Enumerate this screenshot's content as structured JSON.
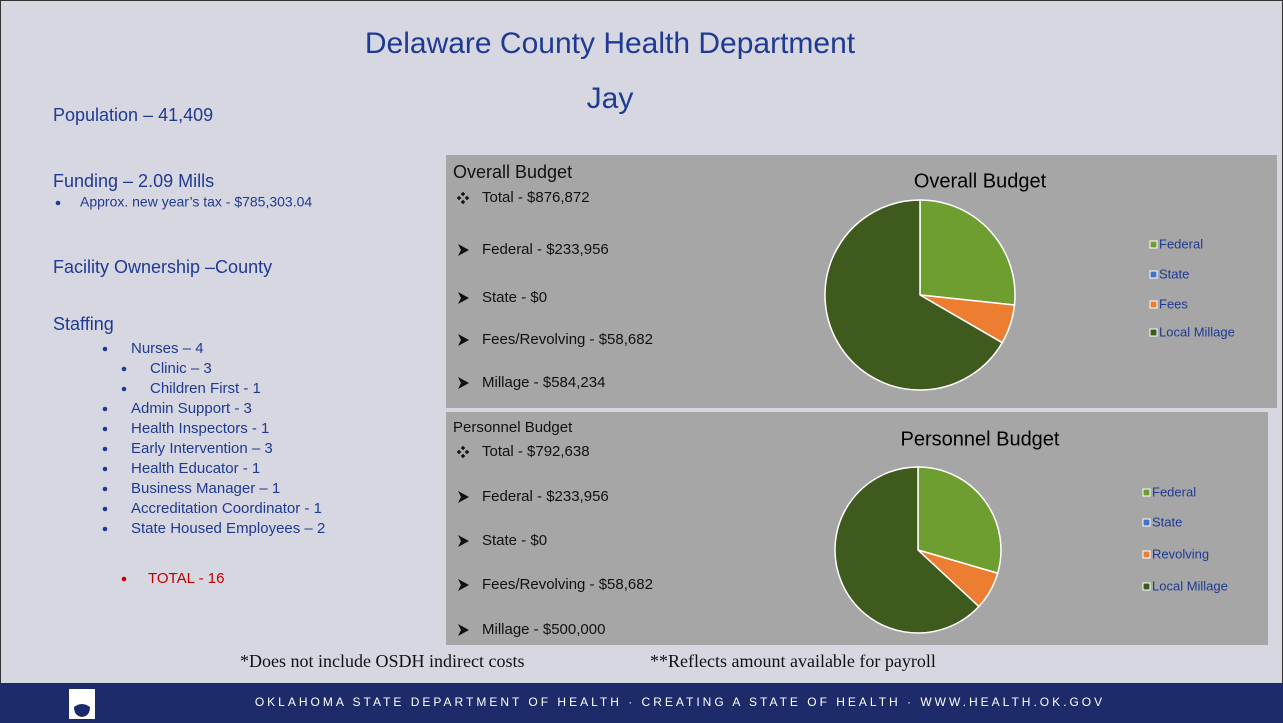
{
  "header": {
    "title": "Delaware County Health Department",
    "subtitle": "Jay"
  },
  "facts": {
    "population": "Population – 41,409",
    "funding": "Funding – 2.09 Mills",
    "funding_note": "Approx. new year’s tax - $785,303.04",
    "ownership": "Facility Ownership –County"
  },
  "staffing": {
    "heading": "Staffing",
    "items": [
      "Nurses – 4",
      "Admin Support - 3",
      "Health Inspectors - 1",
      "Early Intervention – 3",
      "Health Educator - 1",
      "Business Manager – 1",
      "Accreditation Coordinator - 1",
      "State Housed Employees – 2"
    ],
    "nurses_breakdown": [
      "Clinic – 3",
      "Children First - 1"
    ],
    "total": "TOTAL - 16"
  },
  "budgets": [
    {
      "heading": "Overall Budget",
      "total": "Total  - $876,872",
      "lines": [
        "Federal - $233,956",
        "State - $0",
        "Fees/Revolving - $58,682",
        "Millage - $584,234"
      ]
    },
    {
      "heading": "Personnel Budget",
      "total": "Total -  $792,638",
      "lines": [
        "Federal - $233,956",
        "State - $0",
        "Fees/Revolving - $58,682",
        "Millage - $500,000"
      ]
    }
  ],
  "chart_data": [
    {
      "type": "pie",
      "title": "Overall Budget",
      "categories": [
        "Federal",
        "State",
        "Fees",
        "Local Millage"
      ],
      "values": [
        233956,
        0,
        58682,
        584234
      ],
      "colors": [
        "#6f9e30",
        "#4472c4",
        "#ed7d31",
        "#3e5a1d"
      ]
    },
    {
      "type": "pie",
      "title": "Personnel Budget",
      "categories": [
        "Federal",
        "State",
        "Revolving",
        "Local Millage"
      ],
      "values": [
        233956,
        0,
        58682,
        500000
      ],
      "colors": [
        "#6f9e30",
        "#4472c4",
        "#ed7d31",
        "#3e5a1d"
      ]
    }
  ],
  "notes": [
    "*Does not include OSDH indirect costs",
    "**Reflects amount available for payroll"
  ],
  "footer": "OKLAHOMA STATE DEPARTMENT OF HEALTH · CREATING A STATE OF HEALTH · WWW.HEALTH.OK.GOV"
}
